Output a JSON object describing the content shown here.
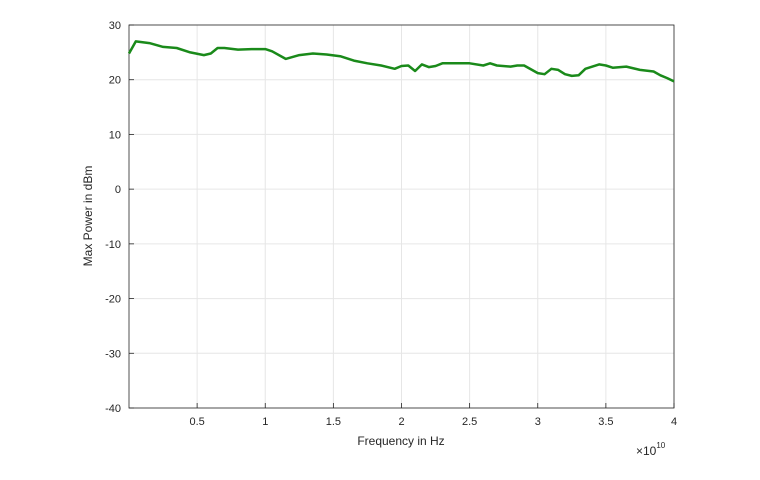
{
  "chart_data": {
    "type": "line",
    "title": "",
    "xlabel": "Frequency in Hz",
    "ylabel": "Max Power in dBm",
    "x_exponent_label": "×10",
    "x_exponent": "10",
    "xlim": [
      0,
      4
    ],
    "ylim": [
      -40,
      30
    ],
    "xticks": [
      0.5,
      1,
      1.5,
      2,
      2.5,
      3,
      3.5,
      4
    ],
    "xtick_labels": [
      "0.5",
      "1",
      "1.5",
      "2",
      "2.5",
      "3",
      "3.5",
      "4"
    ],
    "yticks": [
      -40,
      -30,
      -20,
      -10,
      0,
      10,
      20,
      30
    ],
    "ytick_labels": [
      "-40",
      "-30",
      "-20",
      "-10",
      "0",
      "10",
      "20",
      "30"
    ],
    "grid": true,
    "line_color": "#1a8a1a",
    "series": [
      {
        "x": [
          0,
          0.05,
          0.15,
          0.25,
          0.35,
          0.45,
          0.55,
          0.6,
          0.65,
          0.7,
          0.8,
          0.9,
          1.0,
          1.05,
          1.15,
          1.25,
          1.35,
          1.45,
          1.55,
          1.65,
          1.75,
          1.85,
          1.95,
          2.0,
          2.05,
          2.1,
          2.15,
          2.2,
          2.25,
          2.3,
          2.4,
          2.5,
          2.6,
          2.65,
          2.7,
          2.8,
          2.85,
          2.9,
          3.0,
          3.05,
          3.1,
          3.15,
          3.2,
          3.25,
          3.3,
          3.35,
          3.45,
          3.5,
          3.55,
          3.65,
          3.75,
          3.85,
          3.9,
          3.95,
          4.0
        ],
        "y": [
          24.8,
          27.0,
          26.7,
          26.0,
          25.8,
          25.0,
          24.5,
          24.8,
          25.8,
          25.8,
          25.5,
          25.6,
          25.6,
          25.2,
          23.8,
          24.5,
          24.8,
          24.6,
          24.3,
          23.5,
          23.0,
          22.6,
          22.0,
          22.5,
          22.6,
          21.6,
          22.8,
          22.3,
          22.5,
          23.0,
          23.0,
          23.0,
          22.6,
          23.0,
          22.6,
          22.4,
          22.6,
          22.6,
          21.2,
          21.0,
          22.0,
          21.8,
          21.0,
          20.7,
          20.8,
          22.0,
          22.8,
          22.6,
          22.2,
          22.4,
          21.8,
          21.5,
          20.8,
          20.3,
          19.7
        ]
      }
    ]
  }
}
